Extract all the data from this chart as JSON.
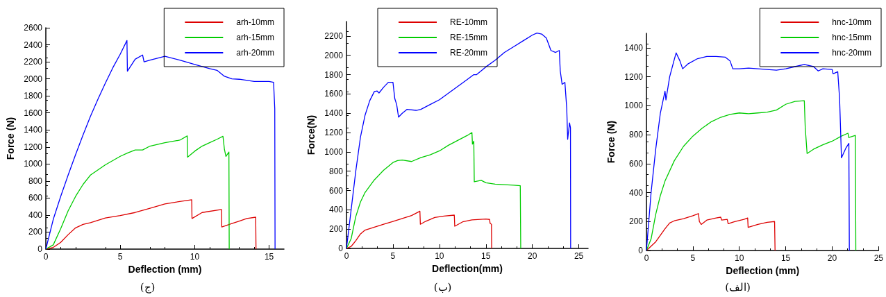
{
  "chart_data": [
    {
      "type": "line",
      "title": "(ج)",
      "xlabel": "Deflection (mm)",
      "ylabel": "Force (N)",
      "xlim": [
        0,
        16
      ],
      "xticks": [
        0,
        5,
        10,
        15
      ],
      "ylim": [
        0,
        2600
      ],
      "yticks": [
        0,
        200,
        400,
        600,
        800,
        1000,
        1200,
        1400,
        1600,
        1800,
        2000,
        2200,
        2400,
        2600
      ],
      "legend": "top right",
      "grid": false,
      "marker": "none",
      "line_style": "solid",
      "series": [
        {
          "name": "arh-10mm",
          "color": "#dd0000",
          "x": [
            0,
            0.5,
            1,
            1.5,
            2,
            2.5,
            3,
            4,
            5,
            6,
            7,
            8,
            9,
            9.8,
            9.82,
            10.5,
            11.8,
            11.82,
            12.5,
            13,
            13.5,
            14.1,
            14.12
          ],
          "values": [
            0,
            20,
            80,
            170,
            250,
            290,
            310,
            365,
            395,
            430,
            480,
            530,
            560,
            580,
            360,
            430,
            465,
            260,
            300,
            330,
            360,
            375,
            0
          ]
        },
        {
          "name": "arh-15mm",
          "color": "#00cc00",
          "x": [
            0,
            0.5,
            1,
            1.5,
            2,
            2.5,
            3,
            4,
            5,
            5.5,
            6,
            6.5,
            7,
            8,
            9,
            9.5,
            9.52,
            10,
            10.5,
            11,
            11.5,
            11.9,
            12,
            12.1,
            12.3,
            12.32
          ],
          "values": [
            0,
            50,
            240,
            450,
            620,
            760,
            870,
            990,
            1090,
            1130,
            1165,
            1165,
            1210,
            1250,
            1280,
            1330,
            1080,
            1150,
            1210,
            1250,
            1290,
            1325,
            1170,
            1090,
            1140,
            0
          ]
        },
        {
          "name": "arh-20mm",
          "color": "#0000ff",
          "x": [
            0,
            0.5,
            1,
            1.5,
            2,
            2.5,
            3,
            3.5,
            4,
            4.5,
            5,
            5.45,
            5.48,
            6,
            6.5,
            6.6,
            7,
            8,
            9,
            10,
            11,
            11.5,
            12,
            12.5,
            13,
            14,
            15,
            15.3,
            15.38,
            15.4
          ],
          "values": [
            0,
            350,
            620,
            870,
            1110,
            1340,
            1560,
            1760,
            1950,
            2130,
            2290,
            2450,
            2090,
            2230,
            2280,
            2200,
            2220,
            2265,
            2220,
            2170,
            2120,
            2100,
            2030,
            2000,
            1995,
            1970,
            1970,
            1960,
            1650,
            0
          ]
        }
      ]
    },
    {
      "type": "line",
      "title": "(ب)",
      "xlabel": "Deflection(mm)",
      "ylabel": "Force(N)",
      "xlim": [
        0,
        26
      ],
      "xticks": [
        0,
        5,
        10,
        15,
        20,
        25
      ],
      "ylim": [
        0,
        2350
      ],
      "yticks": [
        0,
        200,
        400,
        600,
        800,
        1000,
        1200,
        1400,
        1600,
        1800,
        2000,
        2200
      ],
      "legend": "top left",
      "grid": false,
      "marker": "none",
      "line_style": "solid",
      "series": [
        {
          "name": "RE-10mm",
          "color": "#dd0000",
          "x": [
            0,
            0.5,
            1,
            1.5,
            2,
            3,
            4,
            5,
            6,
            7,
            7.9,
            7.95,
            8.5,
            9.5,
            10.5,
            11.6,
            11.65,
            12.5,
            13.5,
            15,
            15.4,
            15.45,
            15.6,
            15.62
          ],
          "values": [
            0,
            20,
            80,
            150,
            190,
            220,
            250,
            280,
            310,
            340,
            385,
            250,
            280,
            320,
            335,
            345,
            230,
            275,
            295,
            305,
            300,
            260,
            250,
            0
          ]
        },
        {
          "name": "RE-15mm",
          "color": "#00cc00",
          "x": [
            0,
            0.5,
            1,
            1.5,
            2,
            3,
            4,
            5,
            5.5,
            6,
            7,
            8,
            9,
            10,
            11,
            12,
            13,
            13.5,
            13.55,
            13.7,
            13.75,
            14.5,
            15,
            16,
            17,
            18,
            18.7,
            18.75
          ],
          "values": [
            0,
            100,
            330,
            480,
            580,
            710,
            810,
            890,
            910,
            915,
            900,
            940,
            970,
            1010,
            1070,
            1120,
            1170,
            1200,
            1080,
            1110,
            690,
            705,
            680,
            665,
            660,
            655,
            650,
            0
          ]
        },
        {
          "name": "RE-20mm",
          "color": "#0000ff",
          "x": [
            0,
            0.5,
            1,
            1.5,
            2,
            2.5,
            3,
            3.3,
            3.5,
            4,
            4.5,
            5,
            5.2,
            5.4,
            5.6,
            6,
            6.5,
            7.5,
            8,
            9,
            10,
            11,
            12,
            13,
            13.7,
            14,
            15,
            16,
            17,
            18,
            19,
            20,
            20.5,
            21,
            21.5,
            22,
            22.5,
            22.9,
            23,
            23.2,
            23.5,
            23.7,
            23.8,
            24,
            24.1,
            24.12
          ],
          "values": [
            0,
            400,
            800,
            1150,
            1380,
            1530,
            1625,
            1630,
            1610,
            1670,
            1720,
            1720,
            1550,
            1490,
            1360,
            1400,
            1440,
            1430,
            1440,
            1490,
            1540,
            1610,
            1680,
            1750,
            1800,
            1800,
            1880,
            1950,
            2030,
            2090,
            2150,
            2210,
            2230,
            2220,
            2180,
            2050,
            2030,
            2050,
            1840,
            1700,
            1720,
            1450,
            1130,
            1300,
            1250,
            0
          ]
        }
      ]
    },
    {
      "type": "line",
      "title": "(الف)",
      "xlabel": "Deflection (mm)",
      "ylabel": "Force (N)",
      "xlim": [
        0,
        25
      ],
      "xticks": [
        0,
        5,
        10,
        15,
        20,
        25
      ],
      "ylim": [
        0,
        1500
      ],
      "yticks": [
        0,
        200,
        400,
        600,
        800,
        1000,
        1200,
        1400
      ],
      "legend": "top right",
      "grid": false,
      "marker": "none",
      "line_style": "solid",
      "series": [
        {
          "name": "hnc-10mm",
          "color": "#dd0000",
          "x": [
            0,
            1,
            2,
            2.5,
            3,
            4,
            5,
            5.6,
            5.7,
            5.9,
            6.5,
            7.5,
            8,
            8.1,
            8.7,
            8.8,
            9.5,
            10.5,
            10.9,
            10.95,
            12,
            13,
            13.8,
            13.85
          ],
          "values": [
            0,
            60,
            150,
            190,
            205,
            220,
            240,
            255,
            200,
            180,
            210,
            225,
            230,
            210,
            215,
            185,
            200,
            215,
            225,
            160,
            180,
            195,
            200,
            0
          ]
        },
        {
          "name": "hnc-15mm",
          "color": "#00cc00",
          "x": [
            0,
            0.5,
            1,
            1.5,
            2,
            3,
            4,
            5,
            6,
            7,
            8,
            9,
            10,
            11,
            12,
            13,
            14,
            15,
            16,
            17,
            17.1,
            17.3,
            18,
            19,
            20,
            21,
            21.7,
            21.8,
            22.5,
            22.55
          ],
          "values": [
            0,
            80,
            250,
            380,
            480,
            620,
            720,
            790,
            845,
            890,
            920,
            940,
            950,
            945,
            950,
            955,
            970,
            1010,
            1030,
            1035,
            850,
            670,
            700,
            730,
            755,
            790,
            810,
            780,
            795,
            0
          ]
        },
        {
          "name": "hnc-20mm",
          "color": "#0000ff",
          "x": [
            0,
            0.5,
            1,
            1.5,
            2,
            2.1,
            2.5,
            3,
            3.2,
            3.6,
            3.9,
            4.5,
            5.5,
            6.5,
            7.5,
            8.5,
            9,
            9.3,
            10,
            11,
            12,
            13,
            14,
            15,
            16,
            17,
            18,
            18.5,
            19,
            20,
            20.1,
            20.6,
            20.8,
            20.9,
            21,
            21.5,
            21.8,
            21.85
          ],
          "values": [
            0,
            400,
            700,
            950,
            1100,
            1040,
            1200,
            1320,
            1365,
            1310,
            1255,
            1290,
            1325,
            1340,
            1340,
            1335,
            1310,
            1255,
            1255,
            1260,
            1255,
            1250,
            1245,
            1255,
            1270,
            1285,
            1270,
            1240,
            1255,
            1250,
            1220,
            1235,
            1050,
            850,
            640,
            710,
            740,
            0
          ]
        }
      ]
    }
  ]
}
